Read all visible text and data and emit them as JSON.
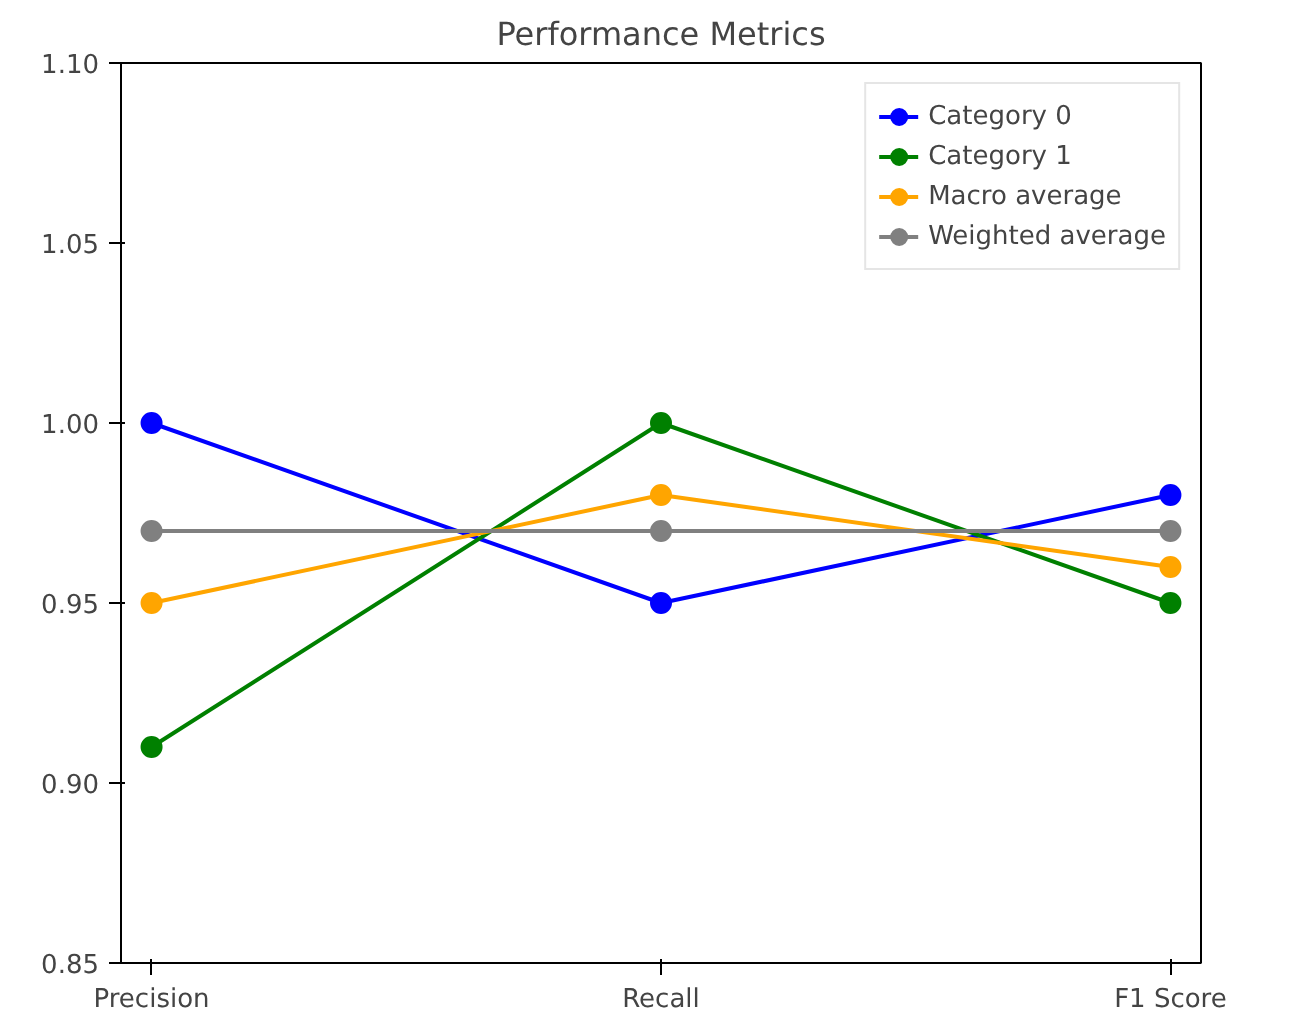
{
  "chart_data": {
    "type": "line",
    "title": "Performance Metrics",
    "categories": [
      "Precision",
      "Recall",
      "F1 Score"
    ],
    "series": [
      {
        "name": "Category 0",
        "color": "#0000ff",
        "values": [
          1.0,
          0.95,
          0.98
        ]
      },
      {
        "name": "Category 1",
        "color": "#008000",
        "values": [
          0.91,
          1.0,
          0.95
        ]
      },
      {
        "name": "Macro average",
        "color": "#ffa500",
        "values": [
          0.95,
          0.98,
          0.96
        ]
      },
      {
        "name": "Weighted average",
        "color": "#808080",
        "values": [
          0.97,
          0.97,
          0.97
        ]
      }
    ],
    "ylim": [
      0.85,
      1.1
    ],
    "yticks": [
      {
        "value": 0.85,
        "label": "0.85"
      },
      {
        "value": 0.9,
        "label": "0.90"
      },
      {
        "value": 0.95,
        "label": "0.95"
      },
      {
        "value": 1.0,
        "label": "1.00"
      },
      {
        "value": 1.05,
        "label": "1.05"
      },
      {
        "value": 1.1,
        "label": "1.10"
      }
    ],
    "legend": "top right",
    "marker": "circle",
    "line_style": "solid"
  }
}
